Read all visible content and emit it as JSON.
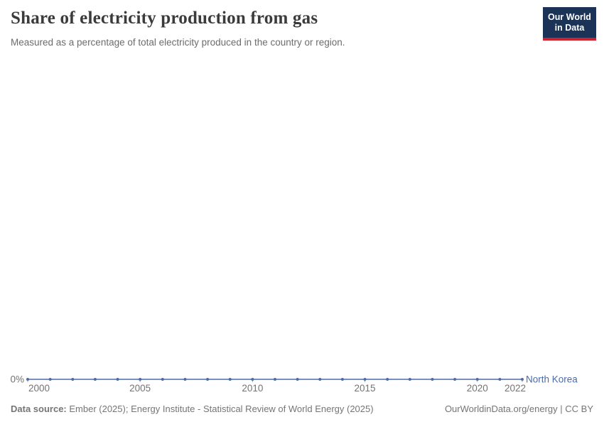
{
  "header": {
    "title": "Share of electricity production from gas",
    "subtitle": "Measured as a percentage of total electricity produced in the country or region."
  },
  "logo": {
    "line1": "Our World",
    "line2": "in Data"
  },
  "chart_data": {
    "type": "line",
    "title": "Share of electricity production from gas",
    "unit": "%",
    "grid": false,
    "legend_position": "end-of-line",
    "x_range": [
      2000,
      2022
    ],
    "x_ticks": [
      {
        "value": 2000,
        "label": "2000",
        "anchor": "start"
      },
      {
        "value": 2005,
        "label": "2005",
        "anchor": "middle"
      },
      {
        "value": 2010,
        "label": "2010",
        "anchor": "middle"
      },
      {
        "value": 2015,
        "label": "2015",
        "anchor": "middle"
      },
      {
        "value": 2020,
        "label": "2020",
        "anchor": "middle"
      },
      {
        "value": 2022,
        "label": "2022",
        "anchor": "end"
      }
    ],
    "y_ticks": [
      {
        "value": 0,
        "label": "0%"
      }
    ],
    "series": [
      {
        "name": "North Korea",
        "color": "#4c6ca8",
        "x": [
          2000,
          2001,
          2002,
          2003,
          2004,
          2005,
          2006,
          2007,
          2008,
          2009,
          2010,
          2011,
          2012,
          2013,
          2014,
          2015,
          2016,
          2017,
          2018,
          2019,
          2020,
          2021,
          2022
        ],
        "values": [
          0,
          0,
          0,
          0,
          0,
          0,
          0,
          0,
          0,
          0,
          0,
          0,
          0,
          0,
          0,
          0,
          0,
          0,
          0,
          0,
          0,
          0,
          0
        ]
      }
    ]
  },
  "footer": {
    "source_label": "Data source:",
    "source_text": " Ember (2025); Energy Institute - Statistical Review of World Energy (2025)",
    "right_text": "OurWorldinData.org/energy | CC BY"
  },
  "colors": {
    "axis_text": "#737373",
    "tick": "#a3a3a3",
    "line": "#4c6ca8"
  }
}
